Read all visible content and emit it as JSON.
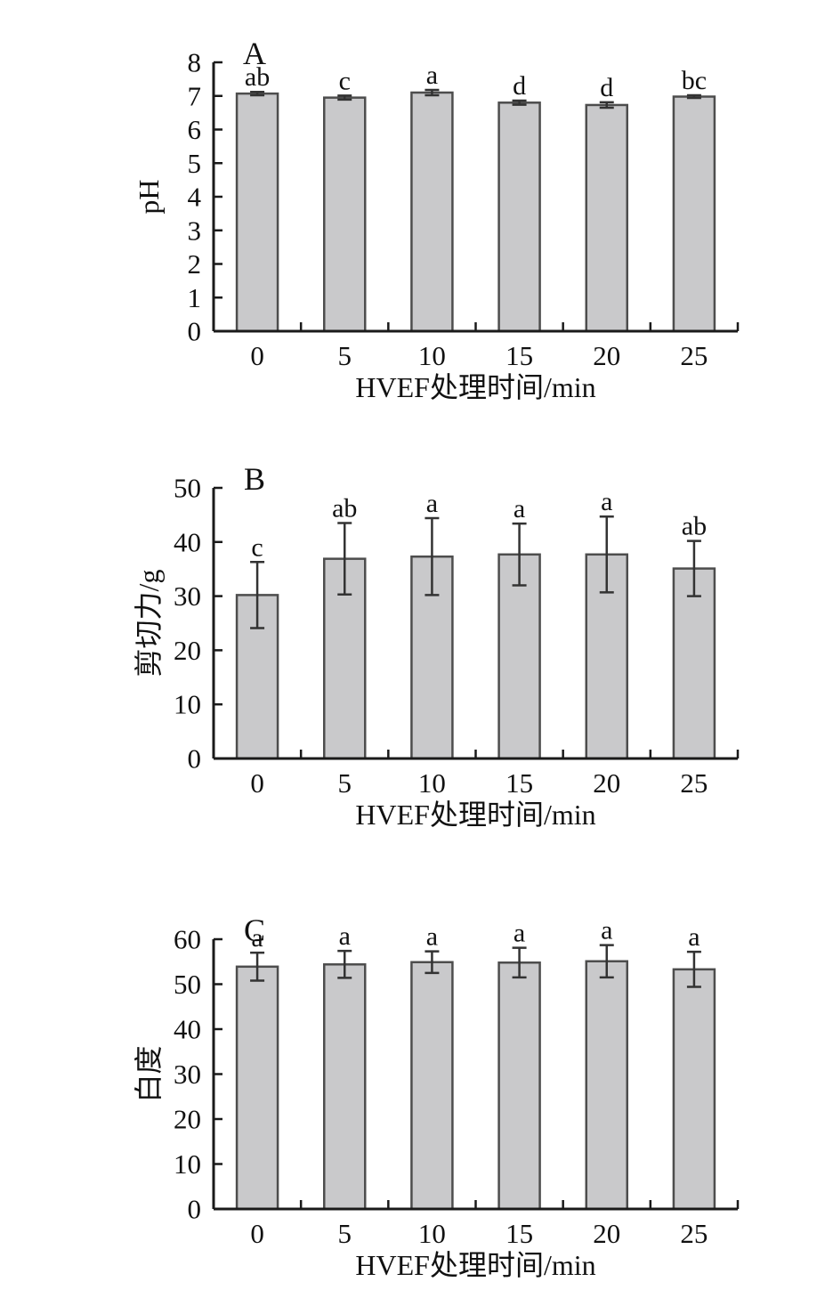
{
  "page": {
    "background": "#ffffff"
  },
  "style": {
    "axis_color": "#1a1a1a",
    "error_bar_color": "#333333",
    "text_color": "#111111",
    "bar_fill": "#c9c9cb",
    "bar_stroke": "#4d4d4d"
  },
  "chart_data": [
    {
      "type": "bar",
      "panel_label": "A",
      "title": "",
      "xlabel": "HVEF处理时间/min",
      "ylabel": "pH",
      "categories": [
        "0",
        "5",
        "10",
        "15",
        "20",
        "25"
      ],
      "values": [
        7.07,
        6.95,
        7.1,
        6.8,
        6.73,
        6.98
      ],
      "errors": [
        0.05,
        0.06,
        0.08,
        0.06,
        0.08,
        0.04
      ],
      "sig_letters": [
        "ab",
        "c",
        "a",
        "d",
        "d",
        "bc"
      ],
      "ylim": [
        0,
        8
      ],
      "ytick_step": 1,
      "grid": false,
      "legend": "none"
    },
    {
      "type": "bar",
      "panel_label": "B",
      "title": "",
      "xlabel": "HVEF处理时间/min",
      "ylabel": "剪切力/g",
      "categories": [
        "0",
        "5",
        "10",
        "15",
        "20",
        "25"
      ],
      "values": [
        30.2,
        36.9,
        37.3,
        37.7,
        37.7,
        35.1
      ],
      "errors": [
        6.1,
        6.6,
        7.1,
        5.7,
        7.0,
        5.1
      ],
      "sig_letters": [
        "c",
        "ab",
        "a",
        "a",
        "a",
        "ab"
      ],
      "ylim": [
        0,
        50
      ],
      "ytick_step": 10,
      "grid": false,
      "legend": "none"
    },
    {
      "type": "bar",
      "panel_label": "C",
      "title": "",
      "xlabel": "HVEF处理时间/min",
      "ylabel": "白度",
      "categories": [
        "0",
        "5",
        "10",
        "15",
        "20",
        "25"
      ],
      "values": [
        53.9,
        54.4,
        54.9,
        54.8,
        55.1,
        53.3
      ],
      "errors": [
        3.1,
        3.0,
        2.4,
        3.3,
        3.6,
        3.9
      ],
      "sig_letters": [
        "a",
        "a",
        "a",
        "a",
        "a",
        "a"
      ],
      "ylim": [
        0,
        60
      ],
      "ytick_step": 10,
      "grid": false,
      "legend": "none"
    }
  ]
}
